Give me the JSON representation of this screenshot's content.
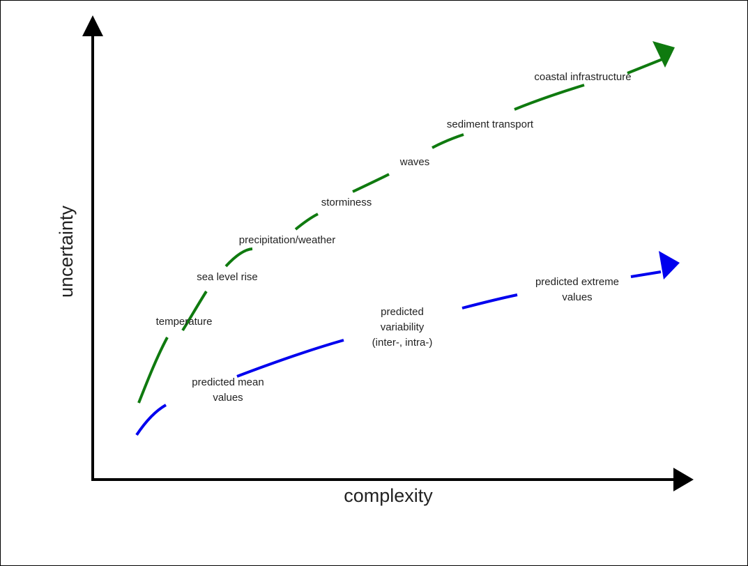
{
  "axes": {
    "x_label": "complexity",
    "y_label": "uncertainty"
  },
  "colors": {
    "axis": "#000000",
    "upper_curve": "#0f7a0f",
    "lower_curve": "#0000ee",
    "text": "#222222"
  },
  "upper_curve": {
    "labels": [
      "temperature",
      "sea level rise",
      "precipitation/weather",
      "storminess",
      "waves",
      "sediment transport",
      "coastal infrastructure"
    ]
  },
  "lower_curve": {
    "labels": {
      "mean": [
        "predicted mean",
        "values"
      ],
      "variability": [
        "predicted",
        "variability",
        "(inter-, intra-)"
      ],
      "extreme": [
        "predicted extreme",
        "values"
      ]
    }
  }
}
